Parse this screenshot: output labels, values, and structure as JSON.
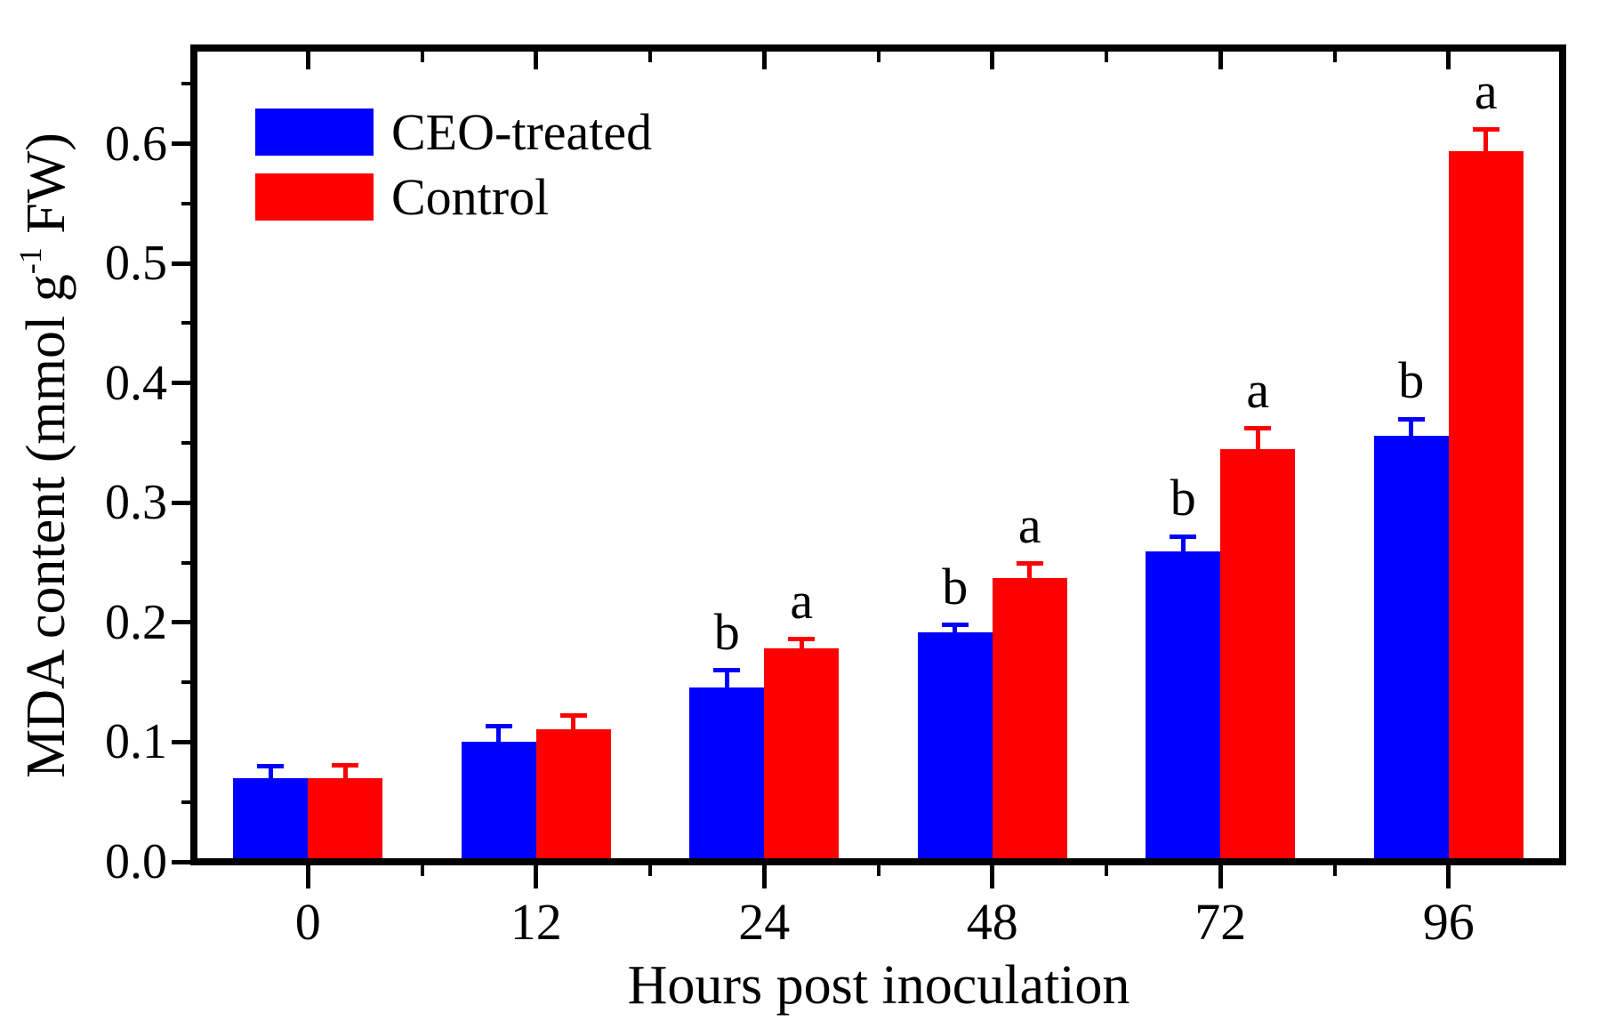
{
  "chart_data": {
    "type": "bar",
    "title": "",
    "xlabel": "Hours post inoculation",
    "ylabel": "MDA content (mmol g-1 FW)",
    "ylabel_parts": {
      "pre": "MDA content (mmol g",
      "sup": "-1",
      "post": " FW)"
    },
    "categories": [
      "0",
      "12",
      "24",
      "48",
      "72",
      "96"
    ],
    "ylim": [
      0,
      0.68
    ],
    "ytick_values": [
      0.0,
      0.1,
      0.2,
      0.3,
      0.4,
      0.5,
      0.6
    ],
    "ytick_labels": [
      "0.0",
      "0.1",
      "0.2",
      "0.3",
      "0.4",
      "0.5",
      "0.6"
    ],
    "minor_tick_step": 0.05,
    "grid": false,
    "legend_position": "top-left",
    "bar_group_gap": "bars within a pair touch; pairs centered on category ticks",
    "series": [
      {
        "name": "CEO-treated",
        "color": "#0000ff",
        "values": [
          0.07,
          0.1,
          0.146,
          0.192,
          0.259,
          0.356
        ],
        "errors_plus": [
          0.01,
          0.013,
          0.014,
          0.006,
          0.013,
          0.014
        ],
        "sig_letters": [
          "",
          "",
          "b",
          "b",
          "b",
          "b"
        ]
      },
      {
        "name": "Control",
        "color": "#ff0000",
        "values": [
          0.07,
          0.111,
          0.178,
          0.237,
          0.345,
          0.594
        ],
        "errors_plus": [
          0.011,
          0.011,
          0.008,
          0.012,
          0.017,
          0.018
        ],
        "sig_letters": [
          "",
          "",
          "a",
          "a",
          "a",
          "a"
        ]
      }
    ]
  }
}
